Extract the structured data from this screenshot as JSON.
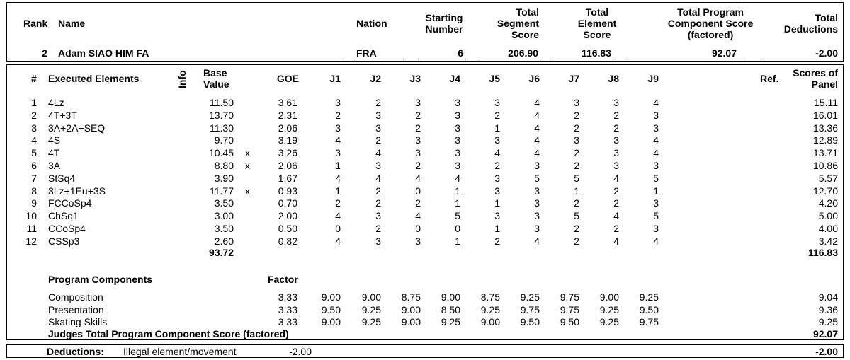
{
  "header": {
    "rank_label": "Rank",
    "name_label": "Name",
    "nation_label": "Nation",
    "starting_number_label": [
      "Starting",
      "Number"
    ],
    "total_segment_label": [
      "Total",
      "Segment",
      "Score"
    ],
    "total_element_label": [
      "Total",
      "Element",
      "Score"
    ],
    "total_pcs_label": [
      "Total Program",
      "Component Score",
      "(factored)"
    ],
    "total_deductions_label": [
      "Total",
      "Deductions"
    ]
  },
  "skater": {
    "rank": "2",
    "name": "Adam SIAO HIM FA",
    "nation": "FRA",
    "starting_number": "6",
    "total_segment_score": "206.90",
    "total_element_score": "116.83",
    "total_pcs": "92.07",
    "total_deductions": "-2.00"
  },
  "elements_header": {
    "num": "#",
    "executed_elements": "Executed Elements",
    "info": "Info",
    "base_value": [
      "Base",
      "Value"
    ],
    "goe": "GOE",
    "judges": [
      "J1",
      "J2",
      "J3",
      "J4",
      "J5",
      "J6",
      "J7",
      "J8",
      "J9"
    ],
    "ref": "Ref.",
    "scores_of_panel": [
      "Scores of",
      "Panel"
    ]
  },
  "elements": [
    {
      "num": "1",
      "name": "4Lz",
      "info": "",
      "base": "11.50",
      "goe": "3.61",
      "judges": [
        "3",
        "2",
        "3",
        "3",
        "3",
        "4",
        "3",
        "3",
        "4"
      ],
      "score": "15.11"
    },
    {
      "num": "2",
      "name": "4T+3T",
      "info": "",
      "base": "13.70",
      "goe": "2.31",
      "judges": [
        "2",
        "3",
        "2",
        "3",
        "2",
        "4",
        "2",
        "2",
        "3"
      ],
      "score": "16.01"
    },
    {
      "num": "3",
      "name": "3A+2A+SEQ",
      "info": "",
      "base": "11.30",
      "goe": "2.06",
      "judges": [
        "3",
        "3",
        "2",
        "3",
        "1",
        "4",
        "2",
        "2",
        "3"
      ],
      "score": "13.36"
    },
    {
      "num": "4",
      "name": "4S",
      "info": "",
      "base": "9.70",
      "goe": "3.19",
      "judges": [
        "4",
        "2",
        "3",
        "3",
        "3",
        "4",
        "3",
        "3",
        "4"
      ],
      "score": "12.89"
    },
    {
      "num": "5",
      "name": "4T",
      "info": "x",
      "base": "10.45",
      "goe": "3.26",
      "judges": [
        "3",
        "4",
        "3",
        "3",
        "4",
        "4",
        "2",
        "3",
        "4"
      ],
      "score": "13.71"
    },
    {
      "num": "6",
      "name": "3A",
      "info": "x",
      "base": "8.80",
      "goe": "2.06",
      "judges": [
        "1",
        "3",
        "2",
        "3",
        "2",
        "3",
        "2",
        "3",
        "3"
      ],
      "score": "10.86"
    },
    {
      "num": "7",
      "name": "StSq4",
      "info": "",
      "base": "3.90",
      "goe": "1.67",
      "judges": [
        "4",
        "4",
        "4",
        "4",
        "3",
        "5",
        "5",
        "4",
        "5"
      ],
      "score": "5.57"
    },
    {
      "num": "8",
      "name": "3Lz+1Eu+3S",
      "info": "x",
      "base": "11.77",
      "goe": "0.93",
      "judges": [
        "1",
        "2",
        "0",
        "1",
        "3",
        "3",
        "1",
        "2",
        "1"
      ],
      "score": "12.70"
    },
    {
      "num": "9",
      "name": "FCCoSp4",
      "info": "",
      "base": "3.50",
      "goe": "0.70",
      "judges": [
        "2",
        "2",
        "2",
        "1",
        "1",
        "3",
        "2",
        "2",
        "3"
      ],
      "score": "4.20"
    },
    {
      "num": "10",
      "name": "ChSq1",
      "info": "",
      "base": "3.00",
      "goe": "2.00",
      "judges": [
        "4",
        "3",
        "4",
        "5",
        "3",
        "3",
        "5",
        "4",
        "5"
      ],
      "score": "5.00"
    },
    {
      "num": "11",
      "name": "CCoSp4",
      "info": "",
      "base": "3.50",
      "goe": "0.50",
      "judges": [
        "0",
        "2",
        "0",
        "0",
        "1",
        "3",
        "2",
        "2",
        "3"
      ],
      "score": "4.00"
    },
    {
      "num": "12",
      "name": "CSSp3",
      "info": "",
      "base": "2.60",
      "goe": "0.82",
      "judges": [
        "4",
        "3",
        "3",
        "1",
        "2",
        "4",
        "2",
        "4",
        "4"
      ],
      "score": "3.42"
    }
  ],
  "elements_totals": {
    "base": "93.72",
    "score": "116.83"
  },
  "components_header": {
    "label": "Program Components",
    "factor": "Factor"
  },
  "components": [
    {
      "name": "Composition",
      "factor": "3.33",
      "judges": [
        "9.00",
        "9.00",
        "8.75",
        "9.00",
        "8.75",
        "9.25",
        "9.75",
        "9.00",
        "9.25"
      ],
      "score": "9.04"
    },
    {
      "name": "Presentation",
      "factor": "3.33",
      "judges": [
        "9.50",
        "9.25",
        "9.00",
        "8.50",
        "9.25",
        "9.75",
        "9.75",
        "9.25",
        "9.50"
      ],
      "score": "9.36"
    },
    {
      "name": "Skating Skills",
      "factor": "3.33",
      "judges": [
        "9.00",
        "9.25",
        "9.00",
        "9.25",
        "9.00",
        "9.50",
        "9.50",
        "9.25",
        "9.75"
      ],
      "score": "9.25"
    }
  ],
  "components_total": {
    "label": "Judges Total Program Component Score (factored)",
    "score": "92.07"
  },
  "deductions": {
    "label": "Deductions:",
    "item": "Illegal element/movement",
    "item_value": "-2.00",
    "total": "-2.00"
  }
}
